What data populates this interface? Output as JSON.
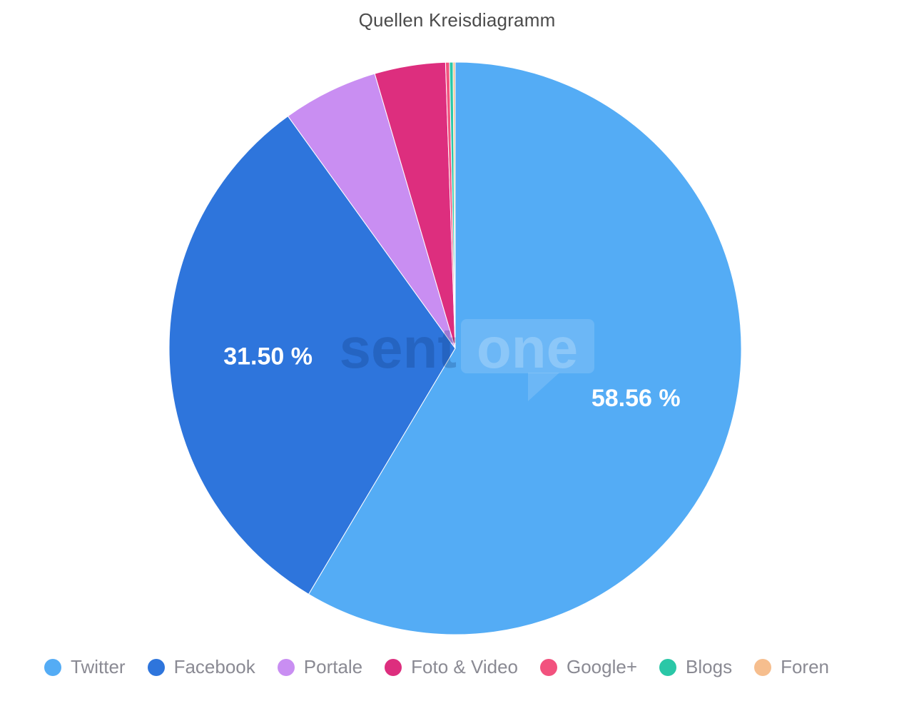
{
  "chart_data": {
    "type": "pie",
    "title": "Quellen Kreisdiagramm",
    "unit": "%",
    "direction": "clockwise",
    "start_angle_deg": 0,
    "legend_position": "bottom",
    "label_color": "#FFFFFF",
    "title_color": "#4B4B4B",
    "legend_text_color": "#8A8A93",
    "series": [
      {
        "id": "twitter",
        "name": "Twitter",
        "value": 58.56,
        "color": "#54ACF5",
        "label": "58.56 %"
      },
      {
        "id": "facebook",
        "name": "Facebook",
        "value": 31.5,
        "color": "#2E75DC",
        "label": "31.50 %"
      },
      {
        "id": "portale",
        "name": "Portale",
        "value": 5.4,
        "color": "#C98EF2",
        "label": ""
      },
      {
        "id": "foto-video",
        "name": "Foto & Video",
        "value": 4.0,
        "color": "#DD2E7E",
        "label": ""
      },
      {
        "id": "google-plus",
        "name": "Google+",
        "value": 0.22,
        "color": "#F2527E",
        "label": ""
      },
      {
        "id": "blogs",
        "name": "Blogs",
        "value": 0.2,
        "color": "#2AC7A7",
        "label": ""
      },
      {
        "id": "foren",
        "name": "Foren",
        "value": 0.12,
        "color": "#F6BE8E",
        "label": ""
      }
    ]
  },
  "watermark": {
    "left_text": "sent",
    "right_text": "one"
  }
}
